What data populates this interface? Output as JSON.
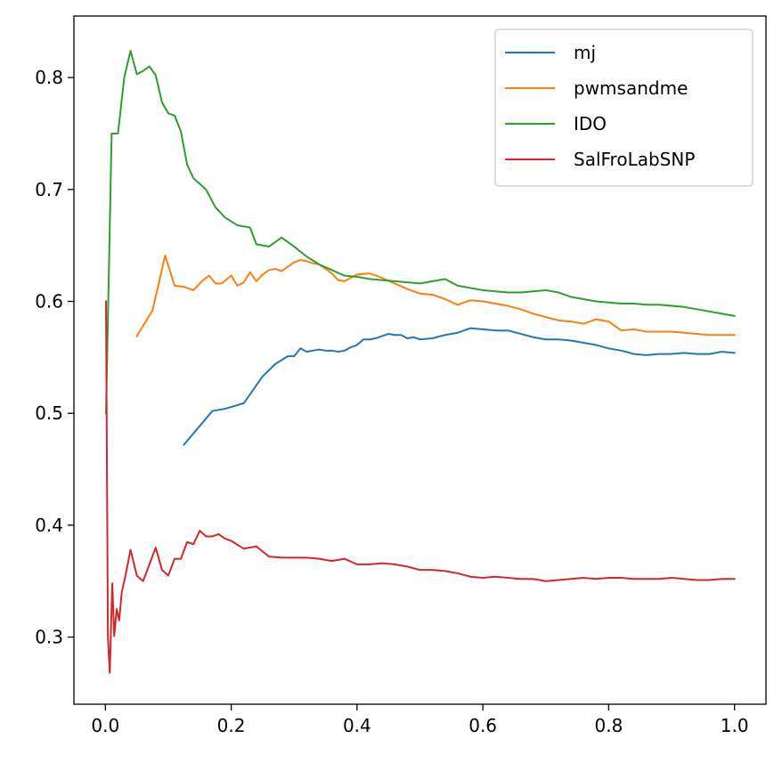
{
  "chart_data": {
    "type": "line",
    "title": "",
    "xlabel": "",
    "ylabel": "",
    "xlim": [
      -0.05,
      1.05
    ],
    "ylim": [
      0.24,
      0.855
    ],
    "xticks": [
      0.0,
      0.2,
      0.4,
      0.6,
      0.8,
      1.0
    ],
    "xtick_labels": [
      "0.0",
      "0.2",
      "0.4",
      "0.6",
      "0.8",
      "1.0"
    ],
    "yticks": [
      0.3,
      0.4,
      0.5,
      0.6,
      0.7,
      0.8
    ],
    "ytick_labels": [
      "0.3",
      "0.4",
      "0.5",
      "0.6",
      "0.7",
      "0.8"
    ],
    "grid": false,
    "legend_position": "top-right",
    "series": [
      {
        "name": "mj",
        "color": "#1f77b4",
        "x": [
          0.125,
          0.17,
          0.19,
          0.22,
          0.25,
          0.27,
          0.29,
          0.3,
          0.31,
          0.32,
          0.33,
          0.34,
          0.35,
          0.36,
          0.37,
          0.38,
          0.39,
          0.4,
          0.41,
          0.42,
          0.43,
          0.44,
          0.45,
          0.46,
          0.47,
          0.48,
          0.49,
          0.5,
          0.52,
          0.54,
          0.56,
          0.58,
          0.6,
          0.62,
          0.64,
          0.66,
          0.68,
          0.7,
          0.72,
          0.74,
          0.76,
          0.78,
          0.8,
          0.82,
          0.84,
          0.86,
          0.88,
          0.9,
          0.92,
          0.94,
          0.96,
          0.98,
          1.0
        ],
        "y": [
          0.472,
          0.502,
          0.504,
          0.509,
          0.533,
          0.544,
          0.551,
          0.551,
          0.558,
          0.555,
          0.556,
          0.557,
          0.556,
          0.556,
          0.555,
          0.556,
          0.559,
          0.561,
          0.566,
          0.566,
          0.567,
          0.569,
          0.571,
          0.57,
          0.57,
          0.567,
          0.568,
          0.566,
          0.567,
          0.57,
          0.572,
          0.576,
          0.575,
          0.574,
          0.574,
          0.571,
          0.568,
          0.566,
          0.566,
          0.565,
          0.563,
          0.561,
          0.558,
          0.556,
          0.553,
          0.552,
          0.553,
          0.553,
          0.554,
          0.553,
          0.553,
          0.555,
          0.554
        ]
      },
      {
        "name": "pwmsandme",
        "color": "#ff7f0e",
        "x": [
          0.05,
          0.075,
          0.095,
          0.11,
          0.125,
          0.14,
          0.155,
          0.165,
          0.175,
          0.185,
          0.2,
          0.21,
          0.22,
          0.23,
          0.24,
          0.25,
          0.26,
          0.27,
          0.28,
          0.29,
          0.3,
          0.31,
          0.32,
          0.33,
          0.34,
          0.35,
          0.36,
          0.37,
          0.38,
          0.39,
          0.4,
          0.42,
          0.44,
          0.46,
          0.48,
          0.5,
          0.52,
          0.54,
          0.56,
          0.58,
          0.6,
          0.62,
          0.64,
          0.66,
          0.68,
          0.7,
          0.72,
          0.74,
          0.76,
          0.78,
          0.8,
          0.82,
          0.84,
          0.86,
          0.88,
          0.9,
          0.92,
          0.94,
          0.96,
          0.98,
          1.0
        ],
        "y": [
          0.569,
          0.592,
          0.641,
          0.614,
          0.613,
          0.61,
          0.619,
          0.623,
          0.616,
          0.616,
          0.623,
          0.614,
          0.617,
          0.626,
          0.618,
          0.624,
          0.628,
          0.629,
          0.627,
          0.631,
          0.635,
          0.637,
          0.636,
          0.634,
          0.633,
          0.629,
          0.625,
          0.619,
          0.618,
          0.621,
          0.624,
          0.625,
          0.621,
          0.616,
          0.611,
          0.607,
          0.606,
          0.602,
          0.597,
          0.601,
          0.6,
          0.598,
          0.596,
          0.593,
          0.589,
          0.586,
          0.583,
          0.582,
          0.58,
          0.584,
          0.582,
          0.574,
          0.575,
          0.573,
          0.573,
          0.573,
          0.572,
          0.571,
          0.57,
          0.57,
          0.57
        ]
      },
      {
        "name": "IDO",
        "color": "#2ca02c",
        "x": [
          0.001,
          0.01,
          0.02,
          0.03,
          0.04,
          0.05,
          0.06,
          0.07,
          0.08,
          0.09,
          0.1,
          0.11,
          0.12,
          0.13,
          0.14,
          0.15,
          0.16,
          0.175,
          0.19,
          0.21,
          0.23,
          0.24,
          0.26,
          0.28,
          0.3,
          0.32,
          0.34,
          0.36,
          0.38,
          0.4,
          0.42,
          0.44,
          0.46,
          0.48,
          0.5,
          0.52,
          0.54,
          0.56,
          0.58,
          0.6,
          0.62,
          0.64,
          0.66,
          0.68,
          0.7,
          0.72,
          0.74,
          0.76,
          0.78,
          0.8,
          0.82,
          0.84,
          0.86,
          0.88,
          0.9,
          0.92,
          0.94,
          0.96,
          0.98,
          1.0
        ],
        "y": [
          0.5,
          0.75,
          0.75,
          0.8,
          0.824,
          0.803,
          0.806,
          0.81,
          0.802,
          0.778,
          0.768,
          0.766,
          0.752,
          0.722,
          0.71,
          0.705,
          0.7,
          0.684,
          0.675,
          0.668,
          0.666,
          0.651,
          0.649,
          0.657,
          0.649,
          0.64,
          0.633,
          0.628,
          0.623,
          0.622,
          0.62,
          0.619,
          0.618,
          0.617,
          0.616,
          0.618,
          0.62,
          0.614,
          0.612,
          0.61,
          0.609,
          0.608,
          0.608,
          0.609,
          0.61,
          0.608,
          0.604,
          0.602,
          0.6,
          0.599,
          0.598,
          0.598,
          0.597,
          0.597,
          0.596,
          0.595,
          0.593,
          0.591,
          0.589,
          0.587
        ]
      },
      {
        "name": "SalFroLabSNP",
        "color": "#d62728",
        "x": [
          0.001,
          0.004,
          0.007,
          0.009,
          0.011,
          0.014,
          0.018,
          0.022,
          0.026,
          0.032,
          0.04,
          0.05,
          0.06,
          0.07,
          0.08,
          0.09,
          0.1,
          0.11,
          0.12,
          0.13,
          0.14,
          0.15,
          0.16,
          0.17,
          0.18,
          0.19,
          0.2,
          0.22,
          0.24,
          0.26,
          0.28,
          0.3,
          0.32,
          0.34,
          0.36,
          0.38,
          0.4,
          0.42,
          0.44,
          0.46,
          0.48,
          0.5,
          0.52,
          0.54,
          0.56,
          0.58,
          0.6,
          0.62,
          0.64,
          0.66,
          0.68,
          0.7,
          0.72,
          0.74,
          0.76,
          0.78,
          0.8,
          0.82,
          0.84,
          0.86,
          0.88,
          0.9,
          0.92,
          0.94,
          0.96,
          0.98,
          1.0
        ],
        "y": [
          0.6,
          0.3,
          0.268,
          0.31,
          0.348,
          0.301,
          0.325,
          0.315,
          0.34,
          0.355,
          0.378,
          0.355,
          0.35,
          0.365,
          0.38,
          0.36,
          0.355,
          0.37,
          0.37,
          0.385,
          0.383,
          0.395,
          0.39,
          0.39,
          0.392,
          0.388,
          0.386,
          0.379,
          0.381,
          0.372,
          0.371,
          0.371,
          0.371,
          0.37,
          0.368,
          0.37,
          0.365,
          0.365,
          0.366,
          0.365,
          0.363,
          0.36,
          0.36,
          0.359,
          0.357,
          0.354,
          0.353,
          0.354,
          0.353,
          0.352,
          0.352,
          0.35,
          0.351,
          0.352,
          0.353,
          0.352,
          0.353,
          0.353,
          0.352,
          0.352,
          0.352,
          0.353,
          0.352,
          0.351,
          0.351,
          0.352,
          0.352
        ]
      }
    ]
  }
}
